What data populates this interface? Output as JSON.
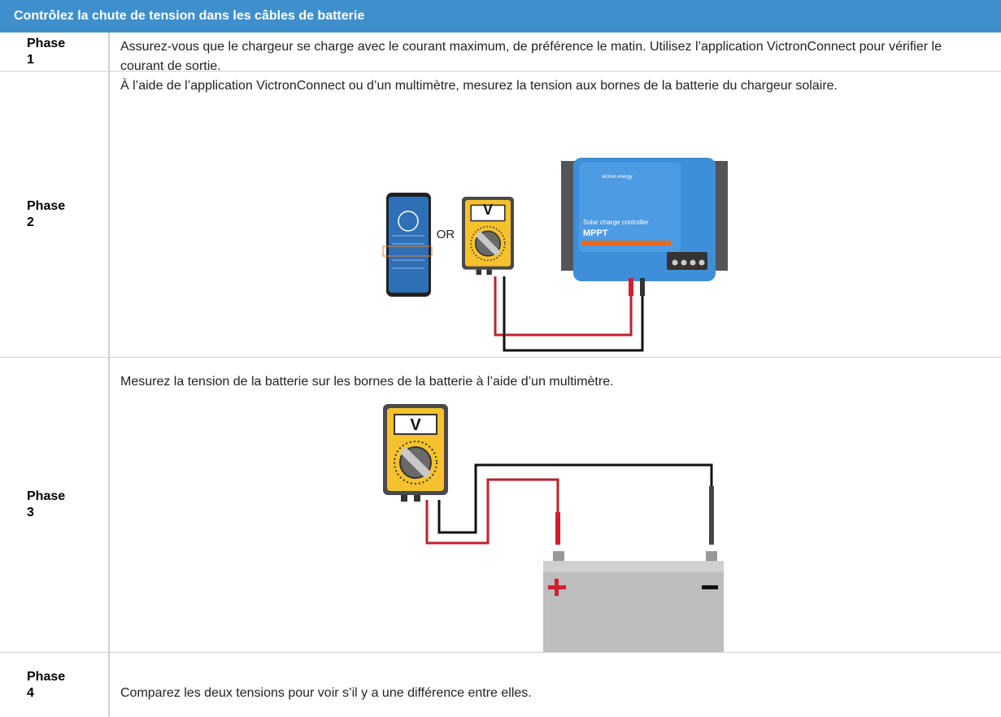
{
  "header": {
    "title": "Contrôlez la chute de tension dans les câbles de batterie"
  },
  "table": {
    "rows": [
      {
        "phase": "Phase 1",
        "text": "Assurez-vous que le chargeur se charge avec le courant maximum, de préférence le matin. Utilisez l’application VictronConnect pour vérifier le courant de sortie."
      },
      {
        "phase": "Phase 2",
        "text": "À l’aide de l’application VictronConnect ou d’un multimètre, mesurez la tension aux bornes de la batterie du chargeur solaire."
      },
      {
        "phase": "Phase 3",
        "text": "Mesurez la tension de la batterie sur les bornes de la batterie à l’aide d’un multimètre."
      },
      {
        "phase": "Phase 4",
        "text": "Comparez les deux tensions pour voir s’il y a une différence entre elles."
      }
    ]
  },
  "illustrations": {
    "row2": {
      "or": "OR",
      "meter": "V",
      "brand": "victron energy",
      "product": "Solar charge controller",
      "model": "MPPT"
    },
    "row3": {
      "meter": "V"
    }
  }
}
